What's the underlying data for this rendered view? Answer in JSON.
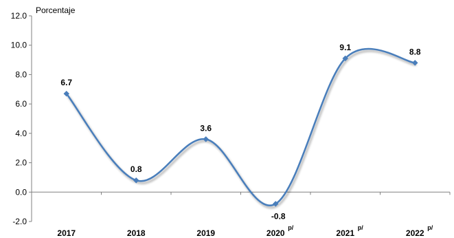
{
  "chart_data": {
    "type": "line",
    "ylabel": "Porcentaje",
    "ylim": [
      -2.0,
      12.0
    ],
    "yticks": [
      "12.0",
      "10.0",
      "8.0",
      "6.0",
      "4.0",
      "2.0",
      "0.0",
      "-2.0"
    ],
    "categories": [
      {
        "label": "2017",
        "sup": ""
      },
      {
        "label": "2018",
        "sup": ""
      },
      {
        "label": "2019",
        "sup": ""
      },
      {
        "label": "2020",
        "sup": "p/"
      },
      {
        "label": "2021",
        "sup": "p/"
      },
      {
        "label": "2022",
        "sup": "p/"
      }
    ],
    "values": [
      6.7,
      0.8,
      3.6,
      -0.8,
      9.1,
      8.8
    ],
    "data_labels": [
      "6.7",
      "0.8",
      "3.6",
      "-0.8",
      "9.1",
      "8.8"
    ],
    "grid": false,
    "colors": {
      "line": "#4a7ebb",
      "marker": "#4a7ebb",
      "axis": "#808080"
    }
  }
}
